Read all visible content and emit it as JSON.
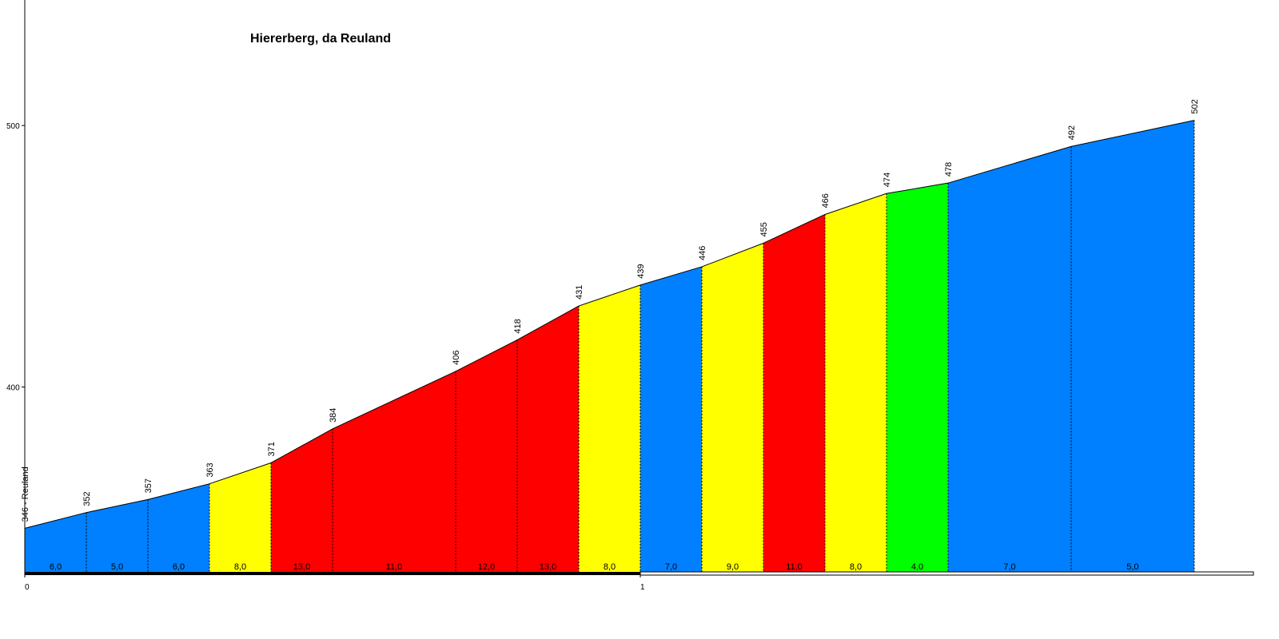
{
  "chart_data": {
    "type": "profile",
    "title": "Hiererberg, da Reuland",
    "x": [
      0,
      0.1,
      0.2,
      0.3,
      0.4,
      0.5,
      0.7,
      0.8,
      0.9,
      1.0,
      1.1,
      1.2,
      1.3,
      1.4,
      1.5,
      1.7,
      1.9
    ],
    "values": [
      346,
      352,
      357,
      363,
      371,
      384,
      406,
      418,
      431,
      439,
      446,
      455,
      466,
      474,
      478,
      492,
      502
    ],
    "value_labels": [
      "346 - Reuland",
      "352",
      "357",
      "363",
      "371",
      "384",
      "406",
      "418",
      "431",
      "439",
      "446",
      "455",
      "466",
      "474",
      "478",
      "492",
      "502"
    ],
    "gradient_labels": [
      "6,0",
      "5,0",
      "6,0",
      "8,0",
      "13,0",
      "11,0",
      "12,0",
      "13,0",
      "8,0",
      "7,0",
      "9,0",
      "11,0",
      "8,0",
      "4,0",
      "7,0",
      "5,0"
    ],
    "colors": [
      "#0080ff",
      "#0080ff",
      "#0080ff",
      "#ffff00",
      "#ff0000",
      "#ff0000",
      "#ff0000",
      "#ff0000",
      "#ffff00",
      "#0080ff",
      "#ffff00",
      "#ff0000",
      "#ffff00",
      "#00ff00",
      "#0080ff",
      "#0080ff"
    ],
    "xlim": [
      0,
      2
    ],
    "xticks": [
      0,
      1
    ],
    "ylim": [
      329,
      548
    ],
    "yticks": [
      400,
      500
    ]
  }
}
